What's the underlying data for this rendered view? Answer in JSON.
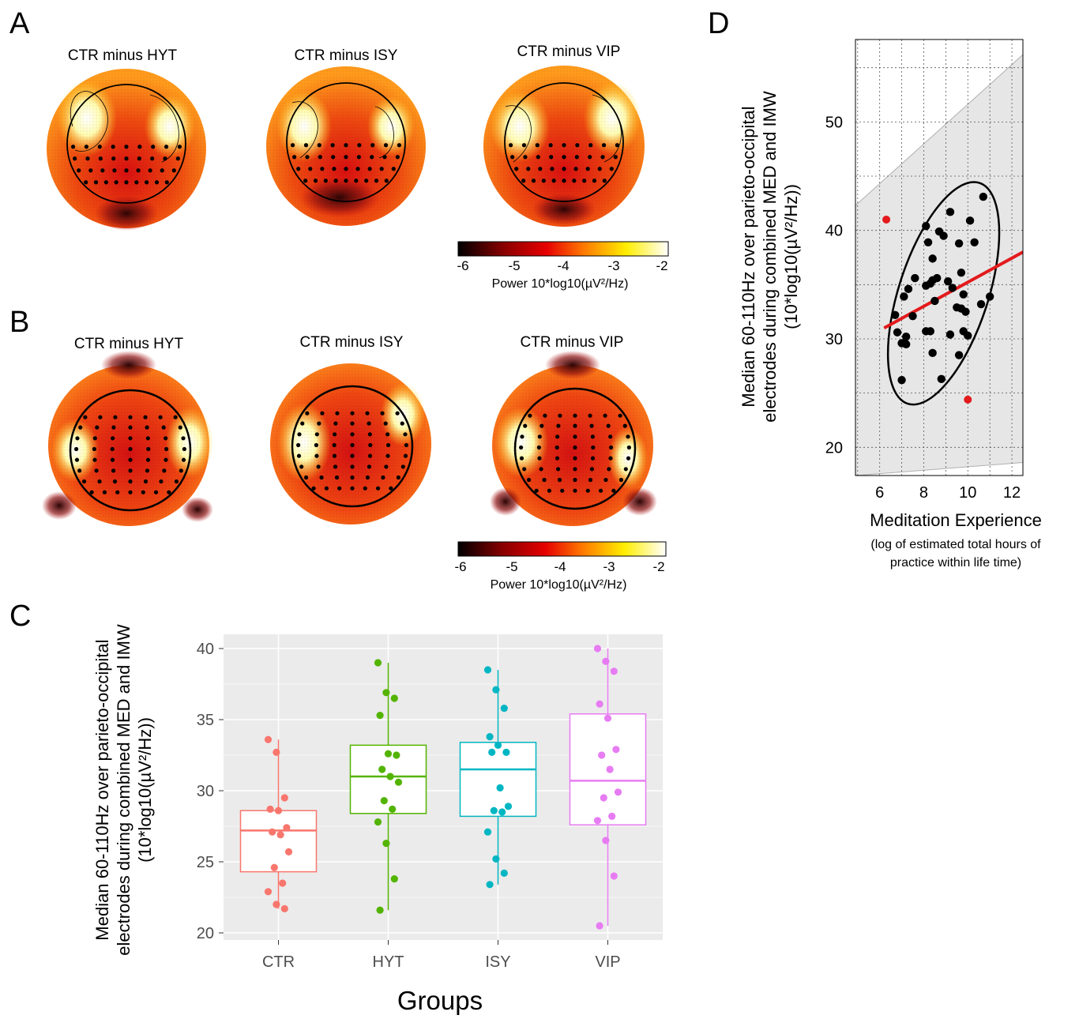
{
  "panels": {
    "A": {
      "letter": "A",
      "titles": [
        "CTR minus HYT",
        "CTR minus ISY",
        "CTR minus VIP"
      ],
      "colorbar": {
        "ticks": [
          "-6",
          "-5",
          "-4",
          "-3",
          "-2"
        ],
        "label": "Power 10*log10(µV²/Hz)"
      }
    },
    "B": {
      "letter": "B",
      "titles": [
        "CTR minus HYT",
        "CTR minus ISY",
        "CTR minus VIP"
      ],
      "colorbar": {
        "ticks": [
          "-6",
          "-5",
          "-4",
          "-3",
          "-2"
        ],
        "label": "Power 10*log10(µV²/Hz)"
      }
    },
    "C": {
      "letter": "C"
    },
    "D": {
      "letter": "D"
    }
  },
  "colors": {
    "CTR": "#f8766d",
    "HYT": "#53b400",
    "ISY": "#00b6c2",
    "VIP": "#e77cf2",
    "regression": "#e31a1c",
    "outlier": "#e31a1c",
    "panel_bg": "#ebebeb"
  },
  "chart_data": [
    {
      "panel": "C",
      "type": "box",
      "categories": [
        "CTR",
        "HYT",
        "ISY",
        "VIP"
      ],
      "xlabel": "Groups",
      "ylabel_lines": [
        "Median 60-110Hz over parieto-occipital",
        "electrodes during combined MED and IMW",
        "(10*log10(µV²/Hz))"
      ],
      "ylim": [
        19.5,
        41
      ],
      "yticks": [
        20,
        25,
        30,
        35,
        40
      ],
      "boxes": [
        {
          "q1": 24.3,
          "median": 27.2,
          "q3": 28.6,
          "whisker_low": 21.7,
          "whisker_high": 33.6
        },
        {
          "q1": 28.4,
          "median": 31.0,
          "q3": 33.2,
          "whisker_low": 21.6,
          "whisker_high": 39.0
        },
        {
          "q1": 28.2,
          "median": 31.5,
          "q3": 33.4,
          "whisker_low": 23.4,
          "whisker_high": 38.5
        },
        {
          "q1": 27.6,
          "median": 30.7,
          "q3": 35.4,
          "whisker_low": 20.5,
          "whisker_high": 40.0
        }
      ],
      "points": [
        [
          33.6,
          32.7,
          29.5,
          28.7,
          28.6,
          27.4,
          27.1,
          26.9,
          25.7,
          24.6,
          23.5,
          22.9,
          22.0,
          21.7
        ],
        [
          39.0,
          36.9,
          36.5,
          35.3,
          32.6,
          32.5,
          31.5,
          31.0,
          30.6,
          29.3,
          28.7,
          27.8,
          26.3,
          23.8,
          21.6
        ],
        [
          38.5,
          37.1,
          35.8,
          33.8,
          33.2,
          32.7,
          32.7,
          30.2,
          28.9,
          28.6,
          28.5,
          27.1,
          25.2,
          24.2,
          23.4
        ],
        [
          40.0,
          39.1,
          38.4,
          36.1,
          35.1,
          32.9,
          32.5,
          31.5,
          29.9,
          29.5,
          28.2,
          27.9,
          26.5,
          24.0,
          20.5
        ]
      ]
    },
    {
      "panel": "D",
      "type": "scatter",
      "xlabel": "Meditation Experience",
      "xlabel_sub": [
        "(log of estimated total hours of",
        "practice within life time)"
      ],
      "ylabel_lines": [
        "Median 60-110Hz over parieto-occipital",
        "electrodes during combined MED and IMW",
        "(10*log10(µV²/Hz))"
      ],
      "xlim": [
        4.9,
        12.5
      ],
      "ylim": [
        17.4,
        57.6
      ],
      "xticks": [
        6,
        8,
        10,
        12
      ],
      "yticks": [
        20,
        30,
        40,
        50
      ],
      "points": [
        [
          10.7,
          43.1
        ],
        [
          8.1,
          40.4
        ],
        [
          9.2,
          41.7
        ],
        [
          10.1,
          40.9
        ],
        [
          8.7,
          39.9
        ],
        [
          8.9,
          39.5
        ],
        [
          8.2,
          38.9
        ],
        [
          9.6,
          38.8
        ],
        [
          10.3,
          38.9
        ],
        [
          8.4,
          37.4
        ],
        [
          9.7,
          36.1
        ],
        [
          7.6,
          35.6
        ],
        [
          8.4,
          35.4
        ],
        [
          8.6,
          35.6
        ],
        [
          8.3,
          35.1
        ],
        [
          9.1,
          35.3
        ],
        [
          8.1,
          34.9
        ],
        [
          9.3,
          34.7
        ],
        [
          7.3,
          34.6
        ],
        [
          9.8,
          34.1
        ],
        [
          7.1,
          33.9
        ],
        [
          10.6,
          33.2
        ],
        [
          8.5,
          33.5
        ],
        [
          11.0,
          33.9
        ],
        [
          9.7,
          32.8
        ],
        [
          9.5,
          32.9
        ],
        [
          9.9,
          32.5
        ],
        [
          6.7,
          32.2
        ],
        [
          7.5,
          32.1
        ],
        [
          6.8,
          30.6
        ],
        [
          8.1,
          30.7
        ],
        [
          8.3,
          30.7
        ],
        [
          9.2,
          30.4
        ],
        [
          9.8,
          30.7
        ],
        [
          10.0,
          30.3
        ],
        [
          7.2,
          30.2
        ],
        [
          7.0,
          29.6
        ],
        [
          7.2,
          29.5
        ],
        [
          8.4,
          28.7
        ],
        [
          9.6,
          28.5
        ],
        [
          8.8,
          26.3
        ],
        [
          7.0,
          26.2
        ]
      ],
      "outliers": [
        [
          6.3,
          41.0
        ],
        [
          10.0,
          24.4
        ]
      ],
      "regression": {
        "x": [
          6.2,
          12.5
        ],
        "y": [
          31.0,
          38.0
        ]
      },
      "ellipse": {
        "cx": 8.9,
        "cy": 34.2,
        "rx": 2.03,
        "ry": 10.7,
        "angle_deg": 18
      },
      "band": {
        "upper": [
          [
            4.9,
            42.3
          ],
          [
            12.5,
            56.2
          ]
        ],
        "lower": [
          [
            4.9,
            17.4
          ],
          [
            12.5,
            18.6
          ]
        ]
      }
    }
  ]
}
